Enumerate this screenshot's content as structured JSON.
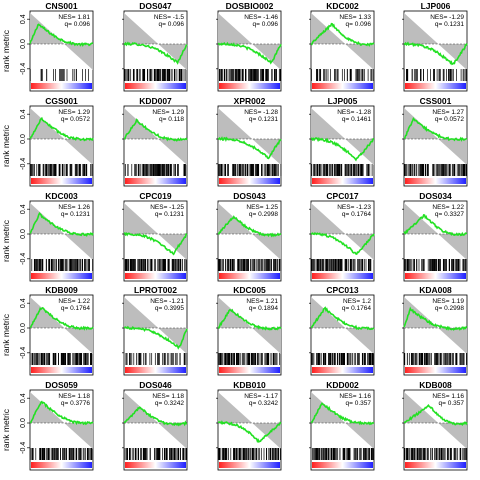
{
  "figure": {
    "ylabel": "rank metric",
    "yticks": [
      0.4,
      0.0,
      -0.4
    ]
  },
  "chart_data": [
    {
      "type": "line",
      "title": "CNS001",
      "nes": "NES= 1.81",
      "q": "q= 0.096",
      "peak": 0.13,
      "sign": 1,
      "depth": 0.32,
      "hits": "sparse",
      "ylim": [
        -0.5,
        0.5
      ]
    },
    {
      "type": "line",
      "title": "DOS047",
      "nes": "NES= -1.5",
      "q": "q= 0.096",
      "peak": 0.85,
      "sign": -1,
      "depth": 0.3,
      "hits": "dense",
      "ylim": [
        -0.5,
        0.5
      ]
    },
    {
      "type": "line",
      "title": "DOSBIO002",
      "nes": "NES= -1.46",
      "q": "q= 0.096",
      "peak": 0.85,
      "sign": -1,
      "depth": 0.3,
      "hits": "dense",
      "ylim": [
        -0.5,
        0.5
      ]
    },
    {
      "type": "line",
      "title": "KDC002",
      "nes": "NES= 1.33",
      "q": "q= 0.096",
      "peak": 0.33,
      "sign": 1,
      "depth": 0.32,
      "hits": "medium",
      "ylim": [
        -0.5,
        0.5
      ]
    },
    {
      "type": "line",
      "title": "LJP006",
      "nes": "NES= -1.29",
      "q": "q= 0.1231",
      "peak": 0.78,
      "sign": -1,
      "depth": 0.33,
      "hits": "medium",
      "ylim": [
        -0.5,
        0.5
      ]
    },
    {
      "type": "line",
      "title": "CGS001",
      "nes": "NES= 1.29",
      "q": "q= 0.0572",
      "peak": 0.18,
      "sign": 1,
      "depth": 0.33,
      "hits": "dense",
      "ylim": [
        -0.5,
        0.5
      ]
    },
    {
      "type": "line",
      "title": "KDD007",
      "nes": "NES= 1.29",
      "q": "q= 0.118",
      "peak": 0.2,
      "sign": 1,
      "depth": 0.3,
      "hits": "dense",
      "ylim": [
        -0.5,
        0.5
      ]
    },
    {
      "type": "line",
      "title": "XPR002",
      "nes": "NES= -1.28",
      "q": "q= 0.1231",
      "peak": 0.8,
      "sign": -1,
      "depth": 0.3,
      "hits": "dense",
      "ylim": [
        -0.5,
        0.5
      ]
    },
    {
      "type": "line",
      "title": "LJP005",
      "nes": "NES= -1.28",
      "q": "q= 0.1461",
      "peak": 0.72,
      "sign": -1,
      "depth": 0.33,
      "hits": "dense",
      "ylim": [
        -0.5,
        0.5
      ]
    },
    {
      "type": "line",
      "title": "CSS001",
      "nes": "NES= 1.27",
      "q": "q= 0.0572",
      "peak": 0.15,
      "sign": 1,
      "depth": 0.32,
      "hits": "dense",
      "ylim": [
        -0.5,
        0.5
      ]
    },
    {
      "type": "line",
      "title": "KDC003",
      "nes": "NES= 1.26",
      "q": "q= 0.1231",
      "peak": 0.15,
      "sign": 1,
      "depth": 0.32,
      "hits": "dense",
      "ylim": [
        -0.5,
        0.5
      ]
    },
    {
      "type": "line",
      "title": "CPC019",
      "nes": "NES= -1.25",
      "q": "q= 0.1231",
      "peak": 0.78,
      "sign": -1,
      "depth": 0.32,
      "hits": "dense",
      "ylim": [
        -0.5,
        0.5
      ]
    },
    {
      "type": "line",
      "title": "DOS043",
      "nes": "NES= 1.25",
      "q": "q= 0.2998",
      "peak": 0.25,
      "sign": 1,
      "depth": 0.28,
      "hits": "dense",
      "ylim": [
        -0.5,
        0.5
      ]
    },
    {
      "type": "line",
      "title": "CPC017",
      "nes": "NES= -1.23",
      "q": "q= 0.1764",
      "peak": 0.72,
      "sign": -1,
      "depth": 0.33,
      "hits": "dense",
      "ylim": [
        -0.5,
        0.5
      ]
    },
    {
      "type": "line",
      "title": "DOS034",
      "nes": "NES= 1.22",
      "q": "q= 0.3327",
      "peak": 0.32,
      "sign": 1,
      "depth": 0.3,
      "hits": "dense",
      "ylim": [
        -0.5,
        0.5
      ]
    },
    {
      "type": "line",
      "title": "KDB009",
      "nes": "NES= 1.22",
      "q": "q= 0.1764",
      "peak": 0.18,
      "sign": 1,
      "depth": 0.33,
      "hits": "dense",
      "ylim": [
        -0.5,
        0.5
      ]
    },
    {
      "type": "line",
      "title": "LPROT002",
      "nes": "NES= -1.21",
      "q": "q= 0.3995",
      "peak": 0.88,
      "sign": -1,
      "depth": 0.32,
      "hits": "medium",
      "ylim": [
        -0.5,
        0.5
      ]
    },
    {
      "type": "line",
      "title": "KDC005",
      "nes": "NES= 1.21",
      "q": "q= 0.1894",
      "peak": 0.2,
      "sign": 1,
      "depth": 0.3,
      "hits": "dense",
      "ylim": [
        -0.5,
        0.5
      ]
    },
    {
      "type": "line",
      "title": "CPC013",
      "nes": "NES= 1.2",
      "q": "q= 0.1764",
      "peak": 0.22,
      "sign": 1,
      "depth": 0.32,
      "hits": "dense",
      "ylim": [
        -0.5,
        0.5
      ]
    },
    {
      "type": "line",
      "title": "KDA008",
      "nes": "NES= 1.19",
      "q": "q= 0.2998",
      "peak": 0.1,
      "sign": 1,
      "depth": 0.3,
      "hits": "dense",
      "ylim": [
        -0.5,
        0.5
      ]
    },
    {
      "type": "line",
      "title": "DOS059",
      "nes": "NES= 1.18",
      "q": "q= 0.3776",
      "peak": 0.18,
      "sign": 1,
      "depth": 0.35,
      "hits": "dense",
      "ylim": [
        -0.5,
        0.5
      ]
    },
    {
      "type": "line",
      "title": "DOS046",
      "nes": "NES= 1.18",
      "q": "q= 0.3242",
      "peak": 0.25,
      "sign": 1,
      "depth": 0.25,
      "hits": "dense",
      "ylim": [
        -0.5,
        0.5
      ]
    },
    {
      "type": "line",
      "title": "KDB010",
      "nes": "NES= -1.17",
      "q": "q= 0.3242",
      "peak": 0.65,
      "sign": -1,
      "depth": 0.3,
      "hits": "dense",
      "ylim": [
        -0.5,
        0.5
      ]
    },
    {
      "type": "line",
      "title": "KDD002",
      "nes": "NES= 1.16",
      "q": "q= 0.357",
      "peak": 0.18,
      "sign": 1,
      "depth": 0.32,
      "hits": "dense",
      "ylim": [
        -0.5,
        0.5
      ]
    },
    {
      "type": "line",
      "title": "KDB008",
      "nes": "NES= 1.16",
      "q": "q= 0.357",
      "peak": 0.4,
      "sign": 1,
      "depth": 0.28,
      "hits": "dense",
      "ylim": [
        -0.5,
        0.5
      ]
    }
  ]
}
